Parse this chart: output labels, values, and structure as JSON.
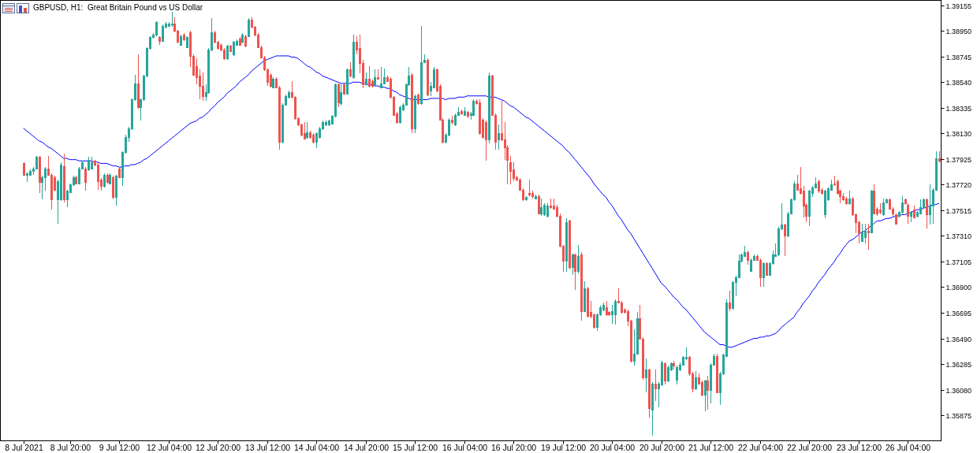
{
  "chart_data": {
    "type": "candlestick",
    "title": "GBPUSD, H1:  Great Britain Pound vs US Dollar",
    "categories": [
      "8 Jul 2021",
      null,
      null,
      null,
      null,
      null,
      null,
      null,
      null,
      null,
      null,
      null,
      null,
      null,
      null,
      "8 Jul 20:00",
      null,
      null,
      null,
      null,
      null,
      null,
      null,
      null,
      null,
      null,
      null,
      null,
      null,
      null,
      null,
      "9 Jul 12:00",
      null,
      null,
      null,
      null,
      null,
      null,
      null,
      null,
      null,
      null,
      null,
      null,
      null,
      null,
      null,
      "12 Jul 04:00",
      null,
      null,
      null,
      null,
      null,
      null,
      null,
      null,
      null,
      null,
      null,
      null,
      null,
      null,
      null,
      "12 Jul 20:00",
      null,
      null,
      null,
      null,
      null,
      null,
      null,
      null,
      null,
      null,
      null,
      null,
      null,
      null,
      null,
      "13 Jul 12:00",
      null,
      null,
      null,
      null,
      null,
      null,
      null,
      null,
      null,
      null,
      null,
      null,
      null,
      null,
      null,
      "14 Jul 04:00",
      null,
      null,
      null,
      null,
      null,
      null,
      null,
      null,
      null,
      null,
      null,
      null,
      null,
      null,
      null,
      "14 Jul 20:00",
      null,
      null,
      null,
      null,
      null,
      null,
      null,
      null,
      null,
      null,
      null,
      null,
      null,
      null,
      null,
      "15 Jul 12:00",
      null,
      null,
      null,
      null,
      null,
      null,
      null,
      null,
      null,
      null,
      null,
      null,
      null,
      null,
      null,
      "16 Jul 04:00",
      null,
      null,
      null,
      null,
      null,
      null,
      null,
      null,
      null,
      null,
      null,
      null,
      null,
      null,
      null,
      "16 Jul 20:00",
      null,
      null,
      null,
      null,
      null,
      null,
      null,
      null,
      null,
      null,
      null,
      null,
      null,
      null,
      null,
      "19 Jul 12:00",
      null,
      null,
      null,
      null,
      null,
      null,
      null,
      null,
      null,
      null,
      null,
      null,
      null,
      null,
      null,
      "20 Jul 04:00",
      null,
      null,
      null,
      null,
      null,
      null,
      null,
      null,
      null,
      null,
      null,
      null,
      null,
      null,
      null,
      "20 Jul 20:00",
      null,
      null,
      null,
      null,
      null,
      null,
      null,
      null,
      null,
      null,
      null,
      null,
      null,
      null,
      null,
      "21 Jul 12:00",
      null,
      null,
      null,
      null,
      null,
      null,
      null,
      null,
      null,
      null,
      null,
      null,
      null,
      null,
      null,
      "22 Jul 04:00",
      null,
      null,
      null,
      null,
      null,
      null,
      null,
      null,
      null,
      null,
      null,
      null,
      null,
      null,
      null,
      "22 Jul 20:00",
      null,
      null,
      null,
      null,
      null,
      null,
      null,
      null,
      null,
      null,
      null,
      null,
      null,
      null,
      null,
      "23 Jul 12:00",
      null,
      null,
      null,
      null,
      null,
      null,
      null,
      null,
      null,
      null,
      null,
      null,
      null,
      null,
      null,
      "26 Jul 04:00",
      null,
      null,
      null,
      null,
      null,
      null,
      null,
      null,
      null,
      null
    ],
    "ohlc": [
      [
        1.3789,
        1.379,
        1.3779,
        1.378
      ],
      [
        1.378,
        1.3782,
        1.3774,
        1.3781
      ],
      [
        1.378,
        1.3784,
        1.3779,
        1.3783
      ],
      [
        1.3783,
        1.3786,
        1.378,
        1.3785
      ],
      [
        1.3785,
        1.3795,
        1.3784,
        1.3794
      ],
      [
        1.3794,
        1.3795,
        1.3765,
        1.3774
      ],
      [
        1.3774,
        1.3779,
        1.376,
        1.3778
      ],
      [
        1.3778,
        1.3786,
        1.3767,
        1.3785
      ],
      [
        1.3785,
        1.3795,
        1.3779,
        1.378
      ],
      [
        1.378,
        1.3781,
        1.3752,
        1.376
      ],
      [
        1.3778,
        1.3779,
        1.3767,
        1.3768
      ],
      [
        1.376,
        1.3776,
        1.3741,
        1.3775
      ],
      [
        1.376,
        1.379,
        1.3759,
        1.3788
      ],
      [
        1.3787,
        1.3797,
        1.3758,
        1.376
      ],
      [
        1.376,
        1.3768,
        1.3754,
        1.3767
      ],
      [
        1.3766,
        1.3773,
        1.3765,
        1.3772
      ],
      [
        1.3772,
        1.3779,
        1.3771,
        1.3778
      ],
      [
        1.3778,
        1.3779,
        1.3772,
        1.3773
      ],
      [
        1.3773,
        1.3786,
        1.3772,
        1.3785
      ],
      [
        1.3785,
        1.3791,
        1.3784,
        1.379
      ],
      [
        1.3785,
        1.3786,
        1.3767,
        1.3774
      ],
      [
        1.3784,
        1.3794,
        1.3783,
        1.3792
      ],
      [
        1.3785,
        1.3794,
        1.3784,
        1.379
      ],
      [
        1.3791,
        1.3792,
        1.3787,
        1.3788
      ],
      [
        1.3788,
        1.3789,
        1.3768,
        1.3775
      ],
      [
        1.3776,
        1.3777,
        1.3767,
        1.3771
      ],
      [
        1.3771,
        1.3781,
        1.377,
        1.378
      ],
      [
        1.378,
        1.3781,
        1.3773,
        1.3774
      ],
      [
        1.3773,
        1.3781,
        1.3772,
        1.378
      ],
      [
        1.3778,
        1.3779,
        1.376,
        1.3762
      ],
      [
        1.3762,
        1.378,
        1.3755,
        1.3779
      ],
      [
        1.3785,
        1.3786,
        1.3777,
        1.3778
      ],
      [
        1.3778,
        1.3799,
        1.3771,
        1.3798
      ],
      [
        1.3798,
        1.3812,
        1.3797,
        1.381
      ],
      [
        1.381,
        1.3818,
        1.3806,
        1.3817
      ],
      [
        1.3817,
        1.3841,
        1.3816,
        1.384
      ],
      [
        1.384,
        1.386,
        1.3839,
        1.3853
      ],
      [
        1.3853,
        1.3876,
        1.3833,
        1.3834
      ],
      [
        1.3834,
        1.3841,
        1.3823,
        1.384
      ],
      [
        1.384,
        1.386,
        1.3839,
        1.3859
      ],
      [
        1.3859,
        1.3882,
        1.3858,
        1.3881
      ],
      [
        1.3881,
        1.3891,
        1.388,
        1.389
      ],
      [
        1.389,
        1.3893,
        1.3889,
        1.3892
      ],
      [
        1.3892,
        1.3903,
        1.3891,
        1.3902
      ],
      [
        1.389,
        1.3891,
        1.3884,
        1.3887
      ],
      [
        1.3887,
        1.39,
        1.3886,
        1.3899
      ],
      [
        1.3898,
        1.3902,
        1.3897,
        1.3901
      ],
      [
        1.3899,
        1.3902,
        1.3898,
        1.3901
      ],
      [
        1.39,
        1.391,
        1.3898,
        1.3901
      ],
      [
        1.3901,
        1.3906,
        1.3894,
        1.3895
      ],
      [
        1.3895,
        1.3896,
        1.3885,
        1.3886
      ],
      [
        1.3884,
        1.3892,
        1.3883,
        1.3891
      ],
      [
        1.3892,
        1.3893,
        1.3887,
        1.3888
      ],
      [
        1.3882,
        1.3891,
        1.3881,
        1.389
      ],
      [
        1.3894,
        1.3895,
        1.3866,
        1.3875
      ],
      [
        1.3875,
        1.3876,
        1.3859,
        1.386
      ],
      [
        1.3867,
        1.3873,
        1.3852,
        1.3858
      ],
      [
        1.3859,
        1.3864,
        1.384,
        1.3851
      ],
      [
        1.3851,
        1.3862,
        1.3839,
        1.3843
      ],
      [
        1.3843,
        1.3852,
        1.3839,
        1.3846
      ],
      [
        1.3846,
        1.3881,
        1.3845,
        1.388
      ],
      [
        1.388,
        1.3905,
        1.3879,
        1.3894
      ],
      [
        1.3894,
        1.3895,
        1.3885,
        1.3886
      ],
      [
        1.3886,
        1.3887,
        1.388,
        1.3881
      ],
      [
        1.3884,
        1.3885,
        1.3879,
        1.388
      ],
      [
        1.388,
        1.3881,
        1.3872,
        1.3873
      ],
      [
        1.3873,
        1.3884,
        1.3872,
        1.3883
      ],
      [
        1.3883,
        1.3884,
        1.3878,
        1.3879
      ],
      [
        1.3876,
        1.3887,
        1.3875,
        1.3886
      ],
      [
        1.3884,
        1.3888,
        1.3883,
        1.3887
      ],
      [
        1.3889,
        1.389,
        1.3883,
        1.3884
      ],
      [
        1.3886,
        1.3893,
        1.3885,
        1.3892
      ],
      [
        1.3891,
        1.3892,
        1.3882,
        1.3883
      ],
      [
        1.3891,
        1.3905,
        1.389,
        1.3904
      ],
      [
        1.3904,
        1.3906,
        1.3897,
        1.3898
      ],
      [
        1.3898,
        1.3899,
        1.3891,
        1.3892
      ],
      [
        1.3892,
        1.3893,
        1.3881,
        1.3882
      ],
      [
        1.3882,
        1.3883,
        1.3873,
        1.3874
      ],
      [
        1.3874,
        1.3875,
        1.3863,
        1.3864
      ],
      [
        1.3864,
        1.3865,
        1.3851,
        1.3854
      ],
      [
        1.386,
        1.3861,
        1.385,
        1.3851
      ],
      [
        1.385,
        1.3858,
        1.3849,
        1.3857
      ],
      [
        1.3857,
        1.3858,
        1.3849,
        1.385
      ],
      [
        1.385,
        1.3851,
        1.38,
        1.3806
      ],
      [
        1.3806,
        1.3837,
        1.3805,
        1.3836
      ],
      [
        1.3836,
        1.3844,
        1.3835,
        1.3843
      ],
      [
        1.3842,
        1.3847,
        1.3841,
        1.3846
      ],
      [
        1.3846,
        1.3855,
        1.3841,
        1.3842
      ],
      [
        1.3842,
        1.3843,
        1.3824,
        1.3825
      ],
      [
        1.3825,
        1.3826,
        1.3819,
        1.382
      ],
      [
        1.382,
        1.3821,
        1.3811,
        1.3812
      ],
      [
        1.3813,
        1.3822,
        1.3808,
        1.3809
      ],
      [
        1.381,
        1.3822,
        1.3809,
        1.3814
      ],
      [
        1.3814,
        1.3815,
        1.3809,
        1.381
      ],
      [
        1.3812,
        1.3813,
        1.3805,
        1.3806
      ],
      [
        1.3806,
        1.3814,
        1.3801,
        1.3813
      ],
      [
        1.381,
        1.3818,
        1.3809,
        1.3817
      ],
      [
        1.3817,
        1.3823,
        1.3816,
        1.3822
      ],
      [
        1.382,
        1.3823,
        1.3819,
        1.3822
      ],
      [
        1.382,
        1.3824,
        1.3819,
        1.3823
      ],
      [
        1.3821,
        1.3828,
        1.382,
        1.3827
      ],
      [
        1.3827,
        1.3853,
        1.3826,
        1.3852
      ],
      [
        1.3852,
        1.3853,
        1.3834,
        1.3838
      ],
      [
        1.3837,
        1.3852,
        1.3835,
        1.3846
      ],
      [
        1.3852,
        1.3853,
        1.3844,
        1.3845
      ],
      [
        1.3845,
        1.3865,
        1.3844,
        1.3864
      ],
      [
        1.3864,
        1.387,
        1.3858,
        1.3859
      ],
      [
        1.3858,
        1.3892,
        1.3857,
        1.3886
      ],
      [
        1.3886,
        1.3891,
        1.3876,
        1.388
      ],
      [
        1.3881,
        1.3892,
        1.3861,
        1.3869
      ],
      [
        1.3869,
        1.3872,
        1.3849,
        1.3852
      ],
      [
        1.3852,
        1.3862,
        1.3851,
        1.3857
      ],
      [
        1.3857,
        1.3867,
        1.385,
        1.3851
      ],
      [
        1.3855,
        1.3856,
        1.385,
        1.3851
      ],
      [
        1.3852,
        1.3864,
        1.3851,
        1.3858
      ],
      [
        1.3858,
        1.3864,
        1.3856,
        1.3857
      ],
      [
        1.385,
        1.3866,
        1.3849,
        1.3853
      ],
      [
        1.3853,
        1.3865,
        1.3852,
        1.3858
      ],
      [
        1.3858,
        1.3859,
        1.3854,
        1.3855
      ],
      [
        1.3857,
        1.3858,
        1.3841,
        1.3842
      ],
      [
        1.3842,
        1.3843,
        1.3827,
        1.3828
      ],
      [
        1.3829,
        1.383,
        1.3821,
        1.3822
      ],
      [
        1.3822,
        1.3835,
        1.3821,
        1.3834
      ],
      [
        1.3832,
        1.3837,
        1.3831,
        1.3836
      ],
      [
        1.3836,
        1.3853,
        1.3835,
        1.3852
      ],
      [
        1.3852,
        1.3866,
        1.3851,
        1.3859
      ],
      [
        1.386,
        1.3861,
        1.3813,
        1.3817
      ],
      [
        1.3817,
        1.3844,
        1.3813,
        1.3843
      ],
      [
        1.3844,
        1.3845,
        1.3836,
        1.3837
      ],
      [
        1.3837,
        1.3899,
        1.3836,
        1.387
      ],
      [
        1.387,
        1.3876,
        1.3869,
        1.3872
      ],
      [
        1.3872,
        1.3873,
        1.3843,
        1.3844
      ],
      [
        1.3847,
        1.3854,
        1.3843,
        1.3851
      ],
      [
        1.385,
        1.3866,
        1.3849,
        1.3864
      ],
      [
        1.3864,
        1.3865,
        1.3846,
        1.3847
      ],
      [
        1.3851,
        1.3852,
        1.3823,
        1.3824
      ],
      [
        1.3824,
        1.3825,
        1.3805,
        1.3806
      ],
      [
        1.3806,
        1.3813,
        1.3805,
        1.3812
      ],
      [
        1.3812,
        1.3825,
        1.3811,
        1.3824
      ],
      [
        1.3824,
        1.3827,
        1.382,
        1.3822
      ],
      [
        1.382,
        1.3829,
        1.3819,
        1.3828
      ],
      [
        1.3828,
        1.3834,
        1.3827,
        1.383
      ],
      [
        1.3831,
        1.3832,
        1.3828,
        1.3829
      ],
      [
        1.3828,
        1.3834,
        1.3827,
        1.3831
      ],
      [
        1.383,
        1.3831,
        1.3825,
        1.3827
      ],
      [
        1.3828,
        1.383,
        1.3824,
        1.3829
      ],
      [
        1.3828,
        1.384,
        1.3827,
        1.3839
      ],
      [
        1.3839,
        1.384,
        1.3836,
        1.3837
      ],
      [
        1.3838,
        1.384,
        1.3812,
        1.3813
      ],
      [
        1.3824,
        1.3825,
        1.3809,
        1.381
      ],
      [
        1.3822,
        1.3823,
        1.3791,
        1.3808
      ],
      [
        1.3808,
        1.3862,
        1.3805,
        1.3859
      ],
      [
        1.3859,
        1.386,
        1.3827,
        1.3828
      ],
      [
        1.3828,
        1.3829,
        1.38,
        1.3806
      ],
      [
        1.3808,
        1.382,
        1.38,
        1.3813
      ],
      [
        1.3813,
        1.3839,
        1.3807,
        1.3808
      ],
      [
        1.3808,
        1.3822,
        1.3792,
        1.3802
      ],
      [
        1.3802,
        1.3804,
        1.3772,
        1.3792
      ],
      [
        1.379,
        1.3795,
        1.3772,
        1.3783
      ],
      [
        1.3784,
        1.379,
        1.3775,
        1.3777
      ],
      [
        1.3778,
        1.3779,
        1.3775,
        1.3776
      ],
      [
        1.3776,
        1.3777,
        1.3767,
        1.3768
      ],
      [
        1.3768,
        1.3769,
        1.3759,
        1.376
      ],
      [
        1.376,
        1.3763,
        1.3759,
        1.3762
      ],
      [
        1.3765,
        1.3776,
        1.3763,
        1.3764
      ],
      [
        1.3765,
        1.3767,
        1.3761,
        1.3763
      ],
      [
        1.3761,
        1.3764,
        1.376,
        1.3763
      ],
      [
        1.3763,
        1.3764,
        1.3748,
        1.3749
      ],
      [
        1.3749,
        1.3761,
        1.3747,
        1.3754
      ],
      [
        1.3748,
        1.3757,
        1.3747,
        1.3756
      ],
      [
        1.3747,
        1.3757,
        1.3746,
        1.3755
      ],
      [
        1.3755,
        1.3761,
        1.3753,
        1.3754
      ],
      [
        1.3755,
        1.3761,
        1.3752,
        1.3753
      ],
      [
        1.3754,
        1.3756,
        1.3746,
        1.3747
      ],
      [
        1.3747,
        1.3749,
        1.3722,
        1.3723
      ],
      [
        1.3723,
        1.3724,
        1.3702,
        1.3711
      ],
      [
        1.3711,
        1.3745,
        1.3702,
        1.3742
      ],
      [
        1.3743,
        1.3744,
        1.3704,
        1.3706
      ],
      [
        1.3706,
        1.3717,
        1.37,
        1.3716
      ],
      [
        1.3716,
        1.3717,
        1.3688,
        1.3703
      ],
      [
        1.3703,
        1.3724,
        1.3701,
        1.3715
      ],
      [
        1.3716,
        1.3718,
        1.3663,
        1.3671
      ],
      [
        1.3671,
        1.3695,
        1.367,
        1.3689
      ],
      [
        1.3689,
        1.369,
        1.3666,
        1.3667
      ],
      [
        1.367,
        1.3679,
        1.3665,
        1.3667
      ],
      [
        1.3668,
        1.3669,
        1.3657,
        1.3658
      ],
      [
        1.3658,
        1.3669,
        1.3655,
        1.3668
      ],
      [
        1.3668,
        1.3675,
        1.3667,
        1.3674
      ],
      [
        1.3672,
        1.3678,
        1.3671,
        1.3676
      ],
      [
        1.3674,
        1.3679,
        1.3667,
        1.3668
      ],
      [
        1.367,
        1.3671,
        1.3667,
        1.3668
      ],
      [
        1.3668,
        1.3676,
        1.3661,
        1.3671
      ],
      [
        1.3668,
        1.368,
        1.366,
        1.3679
      ],
      [
        1.3679,
        1.3689,
        1.3677,
        1.3678
      ],
      [
        1.3678,
        1.3679,
        1.3669,
        1.367
      ],
      [
        1.3672,
        1.3673,
        1.3669,
        1.367
      ],
      [
        1.3671,
        1.3672,
        1.3659,
        1.3663
      ],
      [
        1.3663,
        1.3664,
        1.363,
        1.3631
      ],
      [
        1.3631,
        1.3656,
        1.3627,
        1.3637
      ],
      [
        1.3637,
        1.367,
        1.3636,
        1.3665
      ],
      [
        1.3665,
        1.3676,
        1.3648,
        1.3649
      ],
      [
        1.3649,
        1.365,
        1.3616,
        1.3618
      ],
      [
        1.3618,
        1.3633,
        1.3606,
        1.3624
      ],
      [
        1.3624,
        1.3625,
        1.3586,
        1.3593
      ],
      [
        1.3592,
        1.3614,
        1.3571,
        1.3613
      ],
      [
        1.3613,
        1.3624,
        1.3599,
        1.3609
      ],
      [
        1.3609,
        1.3614,
        1.3594,
        1.3613
      ],
      [
        1.3612,
        1.3631,
        1.3611,
        1.363
      ],
      [
        1.3629,
        1.363,
        1.3612,
        1.3615
      ],
      [
        1.3615,
        1.3627,
        1.3614,
        1.3626
      ],
      [
        1.3624,
        1.363,
        1.3623,
        1.3629
      ],
      [
        1.3629,
        1.3631,
        1.3624,
        1.3627
      ],
      [
        1.3616,
        1.3627,
        1.3612,
        1.3626
      ],
      [
        1.3624,
        1.363,
        1.3623,
        1.3628
      ],
      [
        1.3628,
        1.3635,
        1.3627,
        1.3634
      ],
      [
        1.3633,
        1.3642,
        1.3632,
        1.3634
      ],
      [
        1.3634,
        1.3635,
        1.3619,
        1.3621
      ],
      [
        1.3621,
        1.3622,
        1.3606,
        1.3609
      ],
      [
        1.3609,
        1.3623,
        1.3608,
        1.3618
      ],
      [
        1.3618,
        1.3621,
        1.3612,
        1.3613
      ],
      [
        1.3614,
        1.3615,
        1.3603,
        1.3604
      ],
      [
        1.3604,
        1.3616,
        1.3591,
        1.3615
      ],
      [
        1.3615,
        1.3619,
        1.3592,
        1.3608
      ],
      [
        1.3608,
        1.3629,
        1.3597,
        1.3628
      ],
      [
        1.3628,
        1.3637,
        1.3627,
        1.3635
      ],
      [
        1.3635,
        1.3637,
        1.3605,
        1.3606
      ],
      [
        1.3606,
        1.3622,
        1.3596,
        1.3621
      ],
      [
        1.3621,
        1.3637,
        1.362,
        1.3636
      ],
      [
        1.3635,
        1.368,
        1.3634,
        1.3678
      ],
      [
        1.3678,
        1.3687,
        1.3671,
        1.3673
      ],
      [
        1.3673,
        1.3695,
        1.3672,
        1.3694
      ],
      [
        1.3694,
        1.3699,
        1.3683,
        1.3698
      ],
      [
        1.3698,
        1.3716,
        1.3697,
        1.3711
      ],
      [
        1.3711,
        1.3717,
        1.371,
        1.3716
      ],
      [
        1.3715,
        1.3723,
        1.3714,
        1.3718
      ],
      [
        1.3718,
        1.3719,
        1.3708,
        1.3712
      ],
      [
        1.3703,
        1.3713,
        1.3702,
        1.3712
      ],
      [
        1.3712,
        1.3716,
        1.3711,
        1.3715
      ],
      [
        1.3715,
        1.3716,
        1.3711,
        1.3712
      ],
      [
        1.3712,
        1.3713,
        1.369,
        1.3698
      ],
      [
        1.3698,
        1.371,
        1.369,
        1.3709
      ],
      [
        1.3709,
        1.371,
        1.3699,
        1.37
      ],
      [
        1.37,
        1.371,
        1.3699,
        1.3709
      ],
      [
        1.3709,
        1.3719,
        1.3708,
        1.3716
      ],
      [
        1.3715,
        1.3725,
        1.3714,
        1.3716
      ],
      [
        1.3716,
        1.3738,
        1.3715,
        1.3737
      ],
      [
        1.3737,
        1.3757,
        1.3736,
        1.374
      ],
      [
        1.374,
        1.3741,
        1.3715,
        1.3731
      ],
      [
        1.3731,
        1.375,
        1.373,
        1.3749
      ],
      [
        1.3749,
        1.3761,
        1.3748,
        1.376
      ],
      [
        1.376,
        1.3775,
        1.3759,
        1.3773
      ],
      [
        1.3773,
        1.378,
        1.3767,
        1.3768
      ],
      [
        1.3769,
        1.3786,
        1.3764,
        1.3765
      ],
      [
        1.3767,
        1.3771,
        1.3746,
        1.3755
      ],
      [
        1.3756,
        1.3757,
        1.3742,
        1.3747
      ],
      [
        1.3747,
        1.3768,
        1.3739,
        1.3767
      ],
      [
        1.3765,
        1.3771,
        1.3762,
        1.377
      ],
      [
        1.377,
        1.3778,
        1.3769,
        1.3773
      ],
      [
        1.3775,
        1.3776,
        1.3765,
        1.3767
      ],
      [
        1.3768,
        1.3769,
        1.3764,
        1.3765
      ],
      [
        1.3748,
        1.3768,
        1.3745,
        1.3767
      ],
      [
        1.376,
        1.377,
        1.3759,
        1.3769
      ],
      [
        1.3768,
        1.3776,
        1.3767,
        1.3772
      ],
      [
        1.3773,
        1.3779,
        1.3771,
        1.3772
      ],
      [
        1.3775,
        1.3776,
        1.3764,
        1.3765
      ],
      [
        1.3767,
        1.3768,
        1.3757,
        1.3763
      ],
      [
        1.3763,
        1.3765,
        1.3759,
        1.376
      ],
      [
        1.3761,
        1.3762,
        1.3756,
        1.3757
      ],
      [
        1.3757,
        1.3767,
        1.3756,
        1.3761
      ],
      [
        1.3761,
        1.3762,
        1.3747,
        1.3748
      ],
      [
        1.3748,
        1.3749,
        1.3733,
        1.3742
      ],
      [
        1.3742,
        1.3743,
        1.3725,
        1.3733
      ],
      [
        1.3727,
        1.3741,
        1.3726,
        1.3734
      ],
      [
        1.373,
        1.3741,
        1.3725,
        1.3735
      ],
      [
        1.3735,
        1.3741,
        1.372,
        1.3734
      ],
      [
        1.3734,
        1.3768,
        1.3733,
        1.3767
      ],
      [
        1.3767,
        1.3772,
        1.3748,
        1.3749
      ],
      [
        1.3753,
        1.3754,
        1.3747,
        1.3749
      ],
      [
        1.3752,
        1.3757,
        1.3748,
        1.375
      ],
      [
        1.3748,
        1.3761,
        1.3747,
        1.3758
      ],
      [
        1.3758,
        1.3761,
        1.3757,
        1.376
      ],
      [
        1.376,
        1.3761,
        1.3752,
        1.3753
      ],
      [
        1.3753,
        1.3754,
        1.3747,
        1.3749
      ],
      [
        1.3748,
        1.3749,
        1.374,
        1.3741
      ],
      [
        1.3747,
        1.3751,
        1.3746,
        1.375
      ],
      [
        1.375,
        1.3763,
        1.3749,
        1.3758
      ],
      [
        1.376,
        1.3761,
        1.3756,
        1.3757
      ],
      [
        1.3756,
        1.3757,
        1.3741,
        1.3747
      ],
      [
        1.3747,
        1.3751,
        1.3742,
        1.375
      ],
      [
        1.3752,
        1.3755,
        1.3745,
        1.3746
      ],
      [
        1.3747,
        1.3751,
        1.3746,
        1.375
      ],
      [
        1.3749,
        1.376,
        1.3748,
        1.3754
      ],
      [
        1.3754,
        1.3761,
        1.3753,
        1.376
      ],
      [
        1.376,
        1.3761,
        1.3737,
        1.3748
      ],
      [
        1.3748,
        1.3772,
        1.374,
        1.3755
      ],
      [
        1.3755,
        1.3769,
        1.3741,
        1.3768
      ],
      [
        1.3768,
        1.3799,
        1.3767,
        1.3793
      ],
      [
        1.3793,
        1.3799,
        1.379,
        1.3791
      ]
    ],
    "colors": [
      "#ef5350",
      "#26a69a",
      "#26a69a",
      "#26a69a",
      "#26a69a",
      "#ef5350",
      "#26a69a",
      "#26a69a",
      "#ef5350",
      "#ef5350",
      "#ef5350",
      "#26a69a",
      "#26a69a",
      "#ef5350",
      "#26a69a",
      "#26a69a",
      "#26a69a",
      "#ef5350",
      "#26a69a",
      "#26a69a",
      "#ef5350",
      "#26a69a",
      "#26a69a",
      "#ef5350",
      "#ef5350",
      "#ef5350",
      "#26a69a",
      "#ef5350",
      "#26a69a",
      "#ef5350",
      "#26a69a",
      "#ef5350",
      "#26a69a",
      "#26a69a",
      "#26a69a",
      "#26a69a",
      "#26a69a",
      "#ef5350",
      "#26a69a",
      "#26a69a",
      "#26a69a",
      "#26a69a",
      "#26a69a",
      "#26a69a",
      "#ef5350",
      "#26a69a",
      "#26a69a",
      "#26a69a",
      "#26a69a",
      "#ef5350",
      "#ef5350",
      "#26a69a",
      "#ef5350",
      "#26a69a",
      "#ef5350",
      "#ef5350",
      "#ef5350",
      "#ef5350",
      "#ef5350",
      "#26a69a",
      "#26a69a",
      "#26a69a",
      "#ef5350",
      "#ef5350",
      "#ef5350",
      "#ef5350",
      "#26a69a",
      "#ef5350",
      "#26a69a",
      "#26a69a",
      "#ef5350",
      "#26a69a",
      "#ef5350",
      "#26a69a",
      "#ef5350",
      "#ef5350",
      "#ef5350",
      "#ef5350",
      "#ef5350",
      "#ef5350",
      "#ef5350",
      "#26a69a",
      "#ef5350",
      "#ef5350",
      "#26a69a",
      "#26a69a",
      "#26a69a",
      "#ef5350",
      "#ef5350",
      "#ef5350",
      "#ef5350",
      "#ef5350",
      "#26a69a",
      "#ef5350",
      "#ef5350",
      "#26a69a",
      "#26a69a",
      "#26a69a",
      "#26a69a",
      "#26a69a",
      "#26a69a",
      "#26a69a",
      "#ef5350",
      "#26a69a",
      "#ef5350",
      "#26a69a",
      "#ef5350",
      "#26a69a",
      "#ef5350",
      "#ef5350",
      "#ef5350",
      "#26a69a",
      "#ef5350",
      "#ef5350",
      "#26a69a",
      "#ef5350",
      "#26a69a",
      "#26a69a",
      "#ef5350",
      "#ef5350",
      "#ef5350",
      "#ef5350",
      "#26a69a",
      "#26a69a",
      "#26a69a",
      "#26a69a",
      "#ef5350",
      "#26a69a",
      "#ef5350",
      "#26a69a",
      "#26a69a",
      "#ef5350",
      "#26a69a",
      "#26a69a",
      "#ef5350",
      "#ef5350",
      "#ef5350",
      "#26a69a",
      "#26a69a",
      "#ef5350",
      "#26a69a",
      "#26a69a",
      "#ef5350",
      "#26a69a",
      "#ef5350",
      "#26a69a",
      "#26a69a",
      "#ef5350",
      "#ef5350",
      "#ef5350",
      "#ef5350",
      "#26a69a",
      "#ef5350",
      "#ef5350",
      "#26a69a",
      "#ef5350",
      "#ef5350",
      "#ef5350",
      "#ef5350",
      "#ef5350",
      "#ef5350",
      "#ef5350",
      "#ef5350",
      "#26a69a",
      "#ef5350",
      "#ef5350",
      "#26a69a",
      "#ef5350",
      "#26a69a",
      "#26a69a",
      "#26a69a",
      "#ef5350",
      "#ef5350",
      "#ef5350",
      "#ef5350",
      "#ef5350",
      "#26a69a",
      "#ef5350",
      "#26a69a",
      "#ef5350",
      "#26a69a",
      "#ef5350",
      "#26a69a",
      "#ef5350",
      "#ef5350",
      "#ef5350",
      "#26a69a",
      "#26a69a",
      "#26a69a",
      "#ef5350",
      "#ef5350",
      "#26a69a",
      "#26a69a",
      "#ef5350",
      "#ef5350",
      "#ef5350",
      "#ef5350",
      "#ef5350",
      "#26a69a",
      "#26a69a",
      "#ef5350",
      "#ef5350",
      "#26a69a",
      "#ef5350",
      "#26a69a",
      "#ef5350",
      "#26a69a",
      "#26a69a",
      "#ef5350",
      "#26a69a",
      "#26a69a",
      "#ef5350",
      "#26a69a",
      "#26a69a",
      "#26a69a",
      "#26a69a",
      "#ef5350",
      "#ef5350",
      "#26a69a",
      "#ef5350",
      "#ef5350",
      "#26a69a",
      "#ef5350",
      "#26a69a",
      "#26a69a",
      "#ef5350",
      "#26a69a",
      "#26a69a",
      "#26a69a",
      "#ef5350",
      "#26a69a",
      "#26a69a",
      "#26a69a",
      "#26a69a",
      "#26a69a",
      "#ef5350",
      "#26a69a",
      "#26a69a",
      "#ef5350",
      "#ef5350",
      "#26a69a",
      "#ef5350",
      "#26a69a",
      "#26a69a",
      "#26a69a",
      "#26a69a",
      "#26a69a",
      "#ef5350",
      "#26a69a",
      "#26a69a",
      "#26a69a",
      "#ef5350",
      "#ef5350",
      "#ef5350",
      "#ef5350",
      "#26a69a",
      "#26a69a",
      "#26a69a",
      "#ef5350",
      "#ef5350",
      "#26a69a",
      "#26a69a",
      "#26a69a",
      "#ef5350",
      "#ef5350",
      "#ef5350",
      "#ef5350",
      "#ef5350",
      "#26a69a",
      "#ef5350",
      "#ef5350",
      "#ef5350",
      "#26a69a",
      "#26a69a",
      "#ef5350",
      "#26a69a",
      "#ef5350",
      "#ef5350",
      "#ef5350",
      "#26a69a",
      "#26a69a",
      "#ef5350",
      "#ef5350",
      "#ef5350",
      "#26a69a",
      "#26a69a",
      "#ef5350",
      "#ef5350",
      "#26a69a",
      "#ef5350",
      "#26a69a",
      "#26a69a",
      "#26a69a",
      "#ef5350",
      "#26a69a",
      "#26a69a",
      "#26a69a",
      "#ef5350"
    ],
    "series": [
      {
        "type": "line",
        "color": "#0000ff",
        "values": [
          1.3817,
          1.3815,
          1.3813,
          1.3811,
          1.3809,
          1.3807,
          1.3806,
          1.3804,
          1.3802,
          1.3801,
          1.3799,
          1.3797,
          1.3795,
          1.3793,
          1.3793,
          1.3792,
          1.3792,
          1.3792,
          1.3791,
          1.3791,
          1.3791,
          1.3791,
          1.3791,
          1.379,
          1.379,
          1.3789,
          1.3789,
          1.3789,
          1.3788,
          1.3787,
          1.3787,
          1.3786,
          1.3786,
          1.3787,
          1.3787,
          1.3788,
          1.3788,
          1.3789,
          1.379,
          1.3792,
          1.3793,
          1.3795,
          1.3797,
          1.3799,
          1.3801,
          1.3803,
          1.3805,
          1.3807,
          1.3809,
          1.3811,
          1.3813,
          1.3815,
          1.3817,
          1.3819,
          1.3821,
          1.3822,
          1.3823,
          1.3825,
          1.3826,
          1.3828,
          1.383,
          1.3833,
          1.3835,
          1.3838,
          1.384,
          1.3842,
          1.3845,
          1.3847,
          1.3849,
          1.3851,
          1.3854,
          1.3856,
          1.3858,
          1.386,
          1.3863,
          1.3865,
          1.3867,
          1.3869,
          1.3871,
          1.3872,
          1.3873,
          1.3874,
          1.3875,
          1.3875,
          1.3875,
          1.3875,
          1.3875,
          1.3874,
          1.3874,
          1.3873,
          1.3871,
          1.3869,
          1.3867,
          1.3866,
          1.3864,
          1.3862,
          1.3861,
          1.3859,
          1.3858,
          1.3857,
          1.3856,
          1.3855,
          1.3854,
          1.3853,
          1.3853,
          1.3853,
          1.3853,
          1.3854,
          1.3854,
          1.3854,
          1.3853,
          1.3853,
          1.3852,
          1.3852,
          1.3851,
          1.3851,
          1.385,
          1.385,
          1.3849,
          1.3849,
          1.3847,
          1.3846,
          1.3844,
          1.3843,
          1.3842,
          1.3841,
          1.384,
          1.384,
          1.384,
          1.384,
          1.384,
          1.384,
          1.3841,
          1.3841,
          1.3841,
          1.3841,
          1.3841,
          1.384,
          1.3841,
          1.3841,
          1.3841,
          1.3842,
          1.3842,
          1.3842,
          1.3843,
          1.3843,
          1.3843,
          1.3843,
          1.3843,
          1.3843,
          1.3843,
          1.3842,
          1.3842,
          1.3842,
          1.3841,
          1.384,
          1.3839,
          1.3837,
          1.3835,
          1.3834,
          1.3832,
          1.383,
          1.3828,
          1.3826,
          1.3825,
          1.3823,
          1.3821,
          1.3819,
          1.3817,
          1.3815,
          1.3813,
          1.3811,
          1.3809,
          1.3807,
          1.3805,
          1.3803,
          1.38,
          1.3798,
          1.3795,
          1.3792,
          1.3789,
          1.3786,
          1.3783,
          1.378,
          1.3777,
          1.3773,
          1.377,
          1.3767,
          1.3764,
          1.3762,
          1.3758,
          1.3755,
          1.3751,
          1.3747,
          1.3744,
          1.374,
          1.3736,
          1.3733,
          1.3729,
          1.3725,
          1.3721,
          1.3717,
          1.3713,
          1.3709,
          1.3705,
          1.3701,
          1.3697,
          1.3693,
          1.3691,
          1.3688,
          1.3685,
          1.3682,
          1.368,
          1.3677,
          1.3674,
          1.3672,
          1.3669,
          1.3666,
          1.3663,
          1.366,
          1.3657,
          1.3654,
          1.3652,
          1.365,
          1.3648,
          1.3646,
          1.3644,
          1.3644,
          1.3643,
          1.3642,
          1.3642,
          1.3643,
          1.3644,
          1.3645,
          1.3646,
          1.3647,
          1.3648,
          1.3649,
          1.3649,
          1.365,
          1.365,
          1.3651,
          1.3651,
          1.3652,
          1.3653,
          1.3655,
          1.3658,
          1.366,
          1.3662,
          1.3664,
          1.3666,
          1.367,
          1.3673,
          1.3677,
          1.368,
          1.3683,
          1.3687,
          1.369,
          1.3694,
          1.3697,
          1.37,
          1.3704,
          1.3707,
          1.371,
          1.3714,
          1.3717,
          1.3721,
          1.3724,
          1.3727,
          1.3728,
          1.373,
          1.3732,
          1.3734,
          1.3735,
          1.3737,
          1.3739,
          1.3741,
          1.3743,
          1.3743,
          1.3744,
          1.3745,
          1.3745,
          1.3746,
          1.3747,
          1.3747,
          1.3748,
          1.3748,
          1.3749,
          1.375,
          1.3751,
          1.3752,
          1.3752,
          1.3753,
          1.3754,
          1.3755,
          1.3756,
          1.3756,
          1.3757
        ]
      }
    ],
    "ylim": [
      1.35671,
      1.39194
    ],
    "yticks": [
      1.39155,
      {
        "value": 1.3895,
        "label": "1.38950"
      },
      1.38745,
      {
        "value": 1.3854,
        "label": "1.38540"
      },
      1.38335,
      {
        "value": 1.3813,
        "label": "1.38130"
      },
      1.37925,
      {
        "value": 1.3772,
        "label": "1.37720"
      },
      1.37515,
      {
        "value": 1.3731,
        "label": "1.37310"
      },
      1.37105,
      {
        "value": 1.369,
        "label": "1.36900"
      },
      1.36695,
      {
        "value": 1.3649,
        "label": "1.36490"
      },
      1.36285,
      {
        "value": 1.3608,
        "label": "1.36080"
      },
      1.35875
    ]
  }
}
